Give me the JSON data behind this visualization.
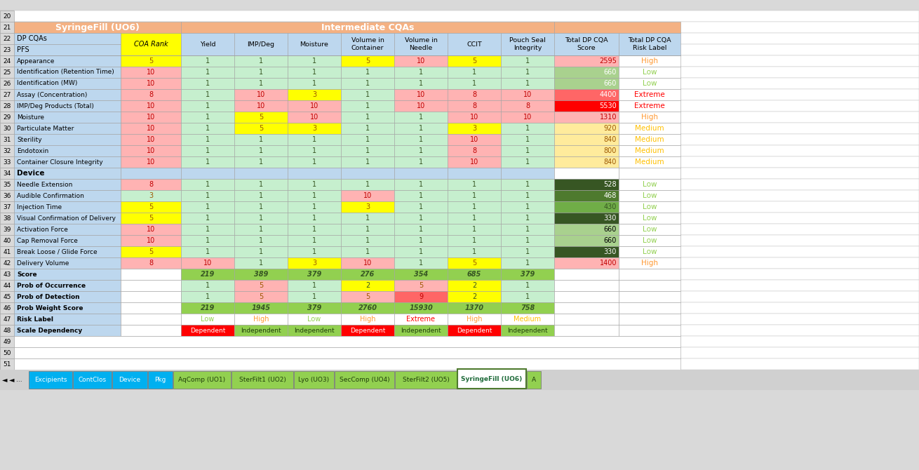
{
  "title_left": "SyringeFill (UO6)",
  "title_right": "Intermediate CQAs",
  "tab_labels": [
    "Excipients",
    "ContClos",
    "Device",
    "Pkg",
    "AqComp (UO1)",
    "SterFilt1 (UO2)",
    "Lyo (UO3)",
    "SecComp (UO4)",
    "SterFilt2 (UO5)",
    "SyringeFill (UO6)",
    "A"
  ],
  "tab_colors_bg": [
    "#00B0F0",
    "#00B0F0",
    "#00B0F0",
    "#00B0F0",
    "#92D050",
    "#92D050",
    "#92D050",
    "#92D050",
    "#92D050",
    "#FFFFFF",
    "#92D050"
  ],
  "tab_colors_text": [
    "#FFFFFF",
    "#FFFFFF",
    "#FFFFFF",
    "#FFFFFF",
    "#1F3E0A",
    "#1F3E0A",
    "#1F3E0A",
    "#1F3E0A",
    "#1F3E0A",
    "#1F6B3A",
    "#1F3E0A"
  ],
  "tab_active": 9,
  "header_bg": "#F4B183",
  "blue_bg": "#BDD7EE",
  "yellow_bg": "#FFFF00",
  "light_green": "#C6EFCE",
  "light_pink": "#FFB3B3",
  "green_dark": "#375623",
  "green_mid": "#70AD47",
  "green_medium": "#92D050",
  "row_numbers": [
    20,
    21,
    22,
    23,
    24,
    25,
    26,
    27,
    28,
    29,
    30,
    31,
    32,
    33,
    34,
    35,
    36,
    37,
    38,
    39,
    40,
    41,
    42,
    43,
    44,
    45,
    46,
    47,
    48,
    49,
    50,
    51
  ],
  "rows": [
    {
      "row": 24,
      "label": "Appearance",
      "coa": 5,
      "yield": 1,
      "imp": 1,
      "moist": 1,
      "vol_c": 5,
      "vol_n": 10,
      "ccit": 5,
      "pouch": 1,
      "score": 2595,
      "risk": "High"
    },
    {
      "row": 25,
      "label": "Identification (Retention Time)",
      "coa": 10,
      "yield": 1,
      "imp": 1,
      "moist": 1,
      "vol_c": 1,
      "vol_n": 1,
      "ccit": 1,
      "pouch": 1,
      "score": 660,
      "risk": "Low"
    },
    {
      "row": 26,
      "label": "Identification (MW)",
      "coa": 10,
      "yield": 1,
      "imp": 1,
      "moist": 1,
      "vol_c": 1,
      "vol_n": 1,
      "ccit": 1,
      "pouch": 1,
      "score": 660,
      "risk": "Low"
    },
    {
      "row": 27,
      "label": "Assay (Concentration)",
      "coa": 8,
      "yield": 1,
      "imp": 10,
      "moist": 3,
      "vol_c": 1,
      "vol_n": 10,
      "ccit": 8,
      "pouch": 10,
      "score": 4400,
      "risk": "Extreme"
    },
    {
      "row": 28,
      "label": "IMP/Deg Products (Total)",
      "coa": 10,
      "yield": 1,
      "imp": 10,
      "moist": 10,
      "vol_c": 1,
      "vol_n": 10,
      "ccit": 8,
      "pouch": 8,
      "score": 5530,
      "risk": "Extreme"
    },
    {
      "row": 29,
      "label": "Moisture",
      "coa": 10,
      "yield": 1,
      "imp": 5,
      "moist": 10,
      "vol_c": 1,
      "vol_n": 1,
      "ccit": 10,
      "pouch": 10,
      "score": 1310,
      "risk": "High"
    },
    {
      "row": 30,
      "label": "Particulate Matter",
      "coa": 10,
      "yield": 1,
      "imp": 5,
      "moist": 3,
      "vol_c": 1,
      "vol_n": 1,
      "ccit": 3,
      "pouch": 1,
      "score": 920,
      "risk": "Medium"
    },
    {
      "row": 31,
      "label": "Sterility",
      "coa": 10,
      "yield": 1,
      "imp": 1,
      "moist": 1,
      "vol_c": 1,
      "vol_n": 1,
      "ccit": 10,
      "pouch": 1,
      "score": 840,
      "risk": "Medium"
    },
    {
      "row": 32,
      "label": "Endotoxin",
      "coa": 10,
      "yield": 1,
      "imp": 1,
      "moist": 1,
      "vol_c": 1,
      "vol_n": 1,
      "ccit": 8,
      "pouch": 1,
      "score": 800,
      "risk": "Medium"
    },
    {
      "row": 33,
      "label": "Container Closure Integrity",
      "coa": 10,
      "yield": 1,
      "imp": 1,
      "moist": 1,
      "vol_c": 1,
      "vol_n": 1,
      "ccit": 10,
      "pouch": 1,
      "score": 840,
      "risk": "Medium"
    },
    {
      "row": 34,
      "label": "Device",
      "coa": null,
      "yield": null,
      "imp": null,
      "moist": null,
      "vol_c": null,
      "vol_n": null,
      "ccit": null,
      "pouch": null,
      "score": null,
      "risk": null
    },
    {
      "row": 35,
      "label": "Needle Extension",
      "coa": 8,
      "yield": 1,
      "imp": 1,
      "moist": 1,
      "vol_c": 1,
      "vol_n": 1,
      "ccit": 1,
      "pouch": 1,
      "score": 528,
      "risk": "Low"
    },
    {
      "row": 36,
      "label": "Audible Confirmation",
      "coa": 3,
      "yield": 1,
      "imp": 1,
      "moist": 1,
      "vol_c": 10,
      "vol_n": 1,
      "ccit": 1,
      "pouch": 1,
      "score": 468,
      "risk": "Low"
    },
    {
      "row": 37,
      "label": "Injection Time",
      "coa": 5,
      "yield": 1,
      "imp": 1,
      "moist": 1,
      "vol_c": 3,
      "vol_n": 1,
      "ccit": 1,
      "pouch": 1,
      "score": 430,
      "risk": "Low"
    },
    {
      "row": 38,
      "label": "Visual Confirmation of Delivery",
      "coa": 5,
      "yield": 1,
      "imp": 1,
      "moist": 1,
      "vol_c": 1,
      "vol_n": 1,
      "ccit": 1,
      "pouch": 1,
      "score": 330,
      "risk": "Low"
    },
    {
      "row": 39,
      "label": "Activation Force",
      "coa": 10,
      "yield": 1,
      "imp": 1,
      "moist": 1,
      "vol_c": 1,
      "vol_n": 1,
      "ccit": 1,
      "pouch": 1,
      "score": 660,
      "risk": "Low"
    },
    {
      "row": 40,
      "label": "Cap Removal Force",
      "coa": 10,
      "yield": 1,
      "imp": 1,
      "moist": 1,
      "vol_c": 1,
      "vol_n": 1,
      "ccit": 1,
      "pouch": 1,
      "score": 660,
      "risk": "Low"
    },
    {
      "row": 41,
      "label": "Break Loose / Glide Force",
      "coa": 5,
      "yield": 1,
      "imp": 1,
      "moist": 1,
      "vol_c": 1,
      "vol_n": 1,
      "ccit": 1,
      "pouch": 1,
      "score": 330,
      "risk": "Low"
    },
    {
      "row": 42,
      "label": "Delivery Volume",
      "coa": 8,
      "yield": 10,
      "imp": 1,
      "moist": 3,
      "vol_c": 10,
      "vol_n": 1,
      "ccit": 5,
      "pouch": 1,
      "score": 1400,
      "risk": "High"
    },
    {
      "row": 43,
      "label": "Score",
      "coa": null,
      "yield": 219,
      "imp": 389,
      "moist": 379,
      "vol_c": 276,
      "vol_n": 354,
      "ccit": 685,
      "pouch": 379,
      "score": null,
      "risk": null
    },
    {
      "row": 44,
      "label": "Prob of Occurrence",
      "coa": null,
      "yield": 1,
      "imp": 5,
      "moist": 1,
      "vol_c": 2,
      "vol_n": 5,
      "ccit": 2,
      "pouch": 1,
      "score": null,
      "risk": null
    },
    {
      "row": 45,
      "label": "Prob of Detection",
      "coa": null,
      "yield": 1,
      "imp": 5,
      "moist": 1,
      "vol_c": 5,
      "vol_n": 9,
      "ccit": 2,
      "pouch": 1,
      "score": null,
      "risk": null
    },
    {
      "row": 46,
      "label": "Prob Weight Score",
      "coa": null,
      "yield": 219,
      "imp": 1945,
      "moist": 379,
      "vol_c": 2760,
      "vol_n": 15930,
      "ccit": 1370,
      "pouch": 758,
      "score": null,
      "risk": null
    },
    {
      "row": 47,
      "label": "Risk Label",
      "coa": null,
      "yield": "Low",
      "imp": "High",
      "moist": "Low",
      "vol_c": "High",
      "vol_n": "Extreme",
      "ccit": "High",
      "pouch": "Medium",
      "score": null,
      "risk": null
    },
    {
      "row": 48,
      "label": "Scale Dependency",
      "coa": null,
      "yield": "Dependent",
      "imp": "Independent",
      "moist": "Independent",
      "vol_c": "Dependent",
      "vol_n": "Independent",
      "ccit": "Dependent",
      "pouch": "Independent",
      "score": null,
      "risk": null
    }
  ],
  "score_colors": {
    "2595": "#FFB3B3",
    "660_id": "#A9D18E",
    "660_act": "#A9D18E",
    "660_cap": "#A9D18E",
    "4400": "#FF6666",
    "5530": "#FF0000",
    "1310": "#FFB3B3",
    "920": "#FFEB9C",
    "840_ster": "#FFEB9C",
    "840_cci": "#FFEB9C",
    "800": "#FFEB9C",
    "528": "#375623",
    "468": "#4E7A2E",
    "430": "#70AD47",
    "330_vis": "#375623",
    "330_brk": "#375623",
    "1400": "#FFB3B3"
  }
}
